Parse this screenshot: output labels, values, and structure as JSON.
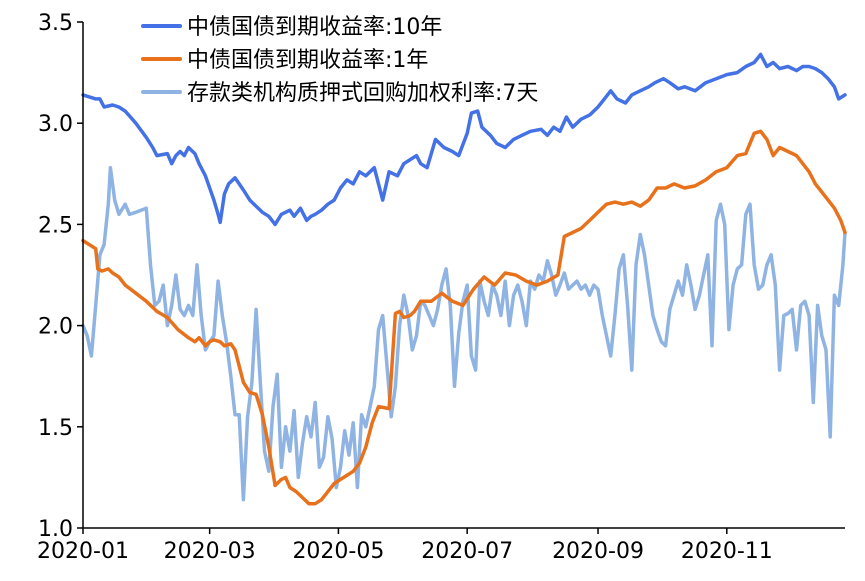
{
  "chart_data": {
    "type": "line",
    "title": "",
    "xlabel": "",
    "ylabel": "",
    "ylim": [
      1.0,
      3.5
    ],
    "yticks": [
      "1.0",
      "1.5",
      "2.0",
      "2.5",
      "3.0",
      "3.5"
    ],
    "ytick_values": [
      1.0,
      1.5,
      2.0,
      2.5,
      3.0,
      3.5
    ],
    "xlim": [
      0,
      361
    ],
    "xticks": [
      "2020-01",
      "2020-03",
      "2020-05",
      "2020-07",
      "2020-09",
      "2020-11"
    ],
    "xtick_values": [
      0,
      60,
      121,
      182,
      244,
      305
    ],
    "legend_position": "top-center",
    "series": [
      {
        "name": "中债国债到期收益率:10年",
        "color": "#4472e6",
        "x": [
          0,
          6,
          8,
          10,
          14,
          17,
          20,
          25,
          30,
          33,
          35,
          40,
          42,
          44,
          46,
          48,
          50,
          53,
          55,
          58,
          62,
          64,
          65,
          67,
          69,
          72,
          76,
          79,
          82,
          85,
          88,
          91,
          94,
          98,
          100,
          103,
          106,
          108,
          110,
          113,
          116,
          119,
          122,
          125,
          128,
          131,
          134,
          138,
          142,
          145,
          149,
          152,
          155,
          158,
          160,
          163,
          167,
          171,
          175,
          178,
          182,
          184,
          187,
          189,
          193,
          196,
          200,
          204,
          208,
          212,
          217,
          220,
          223,
          226,
          229,
          232,
          236,
          240,
          244,
          247,
          250,
          253,
          257,
          260,
          264,
          268,
          271,
          275,
          278,
          282,
          285,
          290,
          295,
          300,
          305,
          310,
          314,
          318,
          321,
          324,
          327,
          330,
          334,
          338,
          341,
          344,
          347,
          350,
          353,
          356,
          358,
          361
        ],
        "values": [
          3.14,
          3.12,
          3.12,
          3.08,
          3.09,
          3.08,
          3.06,
          3.0,
          2.93,
          2.88,
          2.84,
          2.85,
          2.8,
          2.84,
          2.86,
          2.84,
          2.88,
          2.85,
          2.8,
          2.74,
          2.62,
          2.55,
          2.51,
          2.65,
          2.7,
          2.73,
          2.67,
          2.62,
          2.59,
          2.56,
          2.54,
          2.5,
          2.55,
          2.57,
          2.54,
          2.58,
          2.52,
          2.54,
          2.55,
          2.57,
          2.6,
          2.62,
          2.68,
          2.72,
          2.7,
          2.76,
          2.74,
          2.78,
          2.62,
          2.76,
          2.74,
          2.8,
          2.82,
          2.84,
          2.8,
          2.78,
          2.92,
          2.88,
          2.86,
          2.84,
          2.95,
          3.05,
          3.06,
          2.98,
          2.94,
          2.9,
          2.88,
          2.92,
          2.94,
          2.96,
          2.97,
          2.94,
          2.98,
          2.96,
          3.03,
          2.98,
          3.02,
          3.04,
          3.08,
          3.12,
          3.16,
          3.12,
          3.1,
          3.14,
          3.16,
          3.18,
          3.2,
          3.22,
          3.2,
          3.17,
          3.18,
          3.16,
          3.2,
          3.22,
          3.24,
          3.25,
          3.28,
          3.3,
          3.34,
          3.28,
          3.3,
          3.27,
          3.28,
          3.26,
          3.28,
          3.28,
          3.27,
          3.25,
          3.22,
          3.18,
          3.12,
          3.14
        ]
      },
      {
        "name": "中债国债到期收益率:1年",
        "color": "#e8711c",
        "x": [
          0,
          3,
          6,
          7,
          9,
          12,
          14,
          17,
          20,
          25,
          30,
          35,
          40,
          45,
          50,
          53,
          55,
          58,
          60,
          62,
          65,
          67,
          70,
          72,
          74,
          76,
          79,
          82,
          85,
          88,
          91,
          94,
          96,
          98,
          101,
          104,
          107,
          110,
          113,
          116,
          119,
          122,
          125,
          128,
          131,
          134,
          137,
          140,
          145,
          148,
          150,
          152,
          155,
          157,
          160,
          165,
          170,
          175,
          180,
          185,
          190,
          195,
          200,
          205,
          210,
          215,
          220,
          225,
          228,
          232,
          236,
          240,
          244,
          248,
          252,
          256,
          260,
          264,
          268,
          272,
          276,
          280,
          285,
          290,
          295,
          300,
          305,
          310,
          314,
          318,
          321,
          324,
          327,
          330,
          334,
          338,
          341,
          344,
          347,
          350,
          353,
          356,
          359,
          361
        ],
        "values": [
          2.42,
          2.4,
          2.38,
          2.28,
          2.27,
          2.28,
          2.26,
          2.24,
          2.2,
          2.16,
          2.12,
          2.07,
          2.04,
          1.98,
          1.94,
          1.92,
          1.94,
          1.9,
          1.92,
          1.93,
          1.92,
          1.9,
          1.91,
          1.88,
          1.8,
          1.72,
          1.67,
          1.66,
          1.56,
          1.4,
          1.21,
          1.24,
          1.25,
          1.2,
          1.18,
          1.15,
          1.12,
          1.12,
          1.14,
          1.18,
          1.22,
          1.24,
          1.26,
          1.28,
          1.32,
          1.4,
          1.52,
          1.6,
          1.59,
          2.06,
          2.07,
          2.04,
          2.05,
          2.07,
          2.12,
          2.12,
          2.16,
          2.12,
          2.1,
          2.18,
          2.24,
          2.2,
          2.26,
          2.25,
          2.22,
          2.2,
          2.22,
          2.25,
          2.44,
          2.46,
          2.48,
          2.52,
          2.56,
          2.6,
          2.61,
          2.6,
          2.61,
          2.59,
          2.62,
          2.68,
          2.68,
          2.7,
          2.68,
          2.69,
          2.72,
          2.76,
          2.78,
          2.84,
          2.85,
          2.95,
          2.96,
          2.92,
          2.84,
          2.88,
          2.86,
          2.84,
          2.8,
          2.76,
          2.7,
          2.66,
          2.62,
          2.58,
          2.52,
          2.46
        ]
      },
      {
        "name": "存款类机构质押式回购加权利率:7天",
        "color": "#8fb4e3",
        "x": [
          0,
          2,
          4,
          6,
          8,
          10,
          12,
          13,
          15,
          17,
          20,
          22,
          25,
          30,
          32,
          34,
          36,
          38,
          40,
          42,
          44,
          46,
          48,
          50,
          52,
          54,
          56,
          58,
          60,
          62,
          64,
          66,
          68,
          70,
          72,
          74,
          76,
          78,
          80,
          82,
          84,
          86,
          88,
          90,
          92,
          94,
          96,
          98,
          100,
          102,
          104,
          106,
          108,
          110,
          112,
          114,
          116,
          118,
          120,
          122,
          124,
          126,
          128,
          130,
          132,
          134,
          136,
          138,
          140,
          142,
          144,
          146,
          148,
          150,
          152,
          154,
          156,
          158,
          160,
          162,
          164,
          166,
          168,
          170,
          172,
          174,
          176,
          178,
          180,
          182,
          184,
          186,
          188,
          190,
          192,
          194,
          196,
          198,
          200,
          202,
          204,
          206,
          208,
          210,
          212,
          214,
          216,
          218,
          220,
          222,
          224,
          226,
          228,
          230,
          232,
          234,
          236,
          238,
          240,
          242,
          244,
          246,
          248,
          250,
          252,
          254,
          256,
          258,
          260,
          262,
          264,
          266,
          268,
          270,
          272,
          274,
          276,
          278,
          280,
          282,
          284,
          286,
          288,
          290,
          292,
          294,
          296,
          298,
          300,
          302,
          304,
          306,
          308,
          310,
          312,
          314,
          316,
          318,
          320,
          322,
          324,
          326,
          328,
          330,
          332,
          334,
          336,
          338,
          340,
          342,
          344,
          346,
          348,
          350,
          352,
          354,
          356,
          358,
          360,
          361
        ],
        "values": [
          2.0,
          1.95,
          1.85,
          2.1,
          2.35,
          2.4,
          2.6,
          2.78,
          2.62,
          2.55,
          2.6,
          2.55,
          2.56,
          2.58,
          2.3,
          2.1,
          2.12,
          2.2,
          2.0,
          2.1,
          2.25,
          2.08,
          2.05,
          2.1,
          2.05,
          2.3,
          2.05,
          1.88,
          1.92,
          1.95,
          2.22,
          2.05,
          1.92,
          1.75,
          1.56,
          1.56,
          1.14,
          1.55,
          1.72,
          2.08,
          1.72,
          1.38,
          1.28,
          1.6,
          1.76,
          1.3,
          1.5,
          1.38,
          1.58,
          1.25,
          1.42,
          1.55,
          1.45,
          1.62,
          1.3,
          1.35,
          1.55,
          1.44,
          1.2,
          1.3,
          1.48,
          1.36,
          1.52,
          1.2,
          1.56,
          1.5,
          1.6,
          1.7,
          1.98,
          2.05,
          1.8,
          1.55,
          1.7,
          2.0,
          2.15,
          2.05,
          1.88,
          1.95,
          2.12,
          2.1,
          2.05,
          2.0,
          2.08,
          2.2,
          2.28,
          2.1,
          1.7,
          1.96,
          2.12,
          2.2,
          1.85,
          1.78,
          2.22,
          2.12,
          2.05,
          2.2,
          2.15,
          2.05,
          2.22,
          2.0,
          2.15,
          2.2,
          2.12,
          2.0,
          2.22,
          2.18,
          2.25,
          2.22,
          2.32,
          2.25,
          2.15,
          2.2,
          2.26,
          2.18,
          2.2,
          2.22,
          2.18,
          2.2,
          2.15,
          2.2,
          2.18,
          2.05,
          1.95,
          1.85,
          2.05,
          2.28,
          2.35,
          2.1,
          1.78,
          2.3,
          2.45,
          2.35,
          2.2,
          2.05,
          1.98,
          1.92,
          1.9,
          2.08,
          2.15,
          2.22,
          2.15,
          2.3,
          2.2,
          2.08,
          2.15,
          2.25,
          2.35,
          1.9,
          2.52,
          2.6,
          2.5,
          1.98,
          2.2,
          2.28,
          2.3,
          2.55,
          2.6,
          2.3,
          2.18,
          2.2,
          2.3,
          2.35,
          2.2,
          1.78,
          2.05,
          2.06,
          2.08,
          1.88,
          2.1,
          2.12,
          2.05,
          1.62,
          2.1,
          1.95,
          1.88,
          1.45,
          2.15,
          2.1,
          2.3,
          2.46
        ]
      }
    ]
  }
}
